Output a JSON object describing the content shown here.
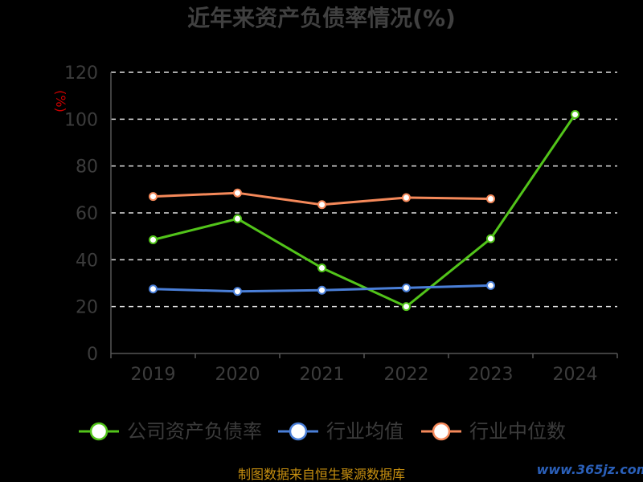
{
  "chart_data": {
    "type": "line",
    "title": "近年来资产负债率情况(%)",
    "ylabel": "(%)",
    "categories": [
      "2019",
      "2020",
      "2021",
      "2022",
      "2023",
      "2024"
    ],
    "ylim": [
      0,
      120
    ],
    "yticks": [
      0,
      20,
      40,
      60,
      80,
      100,
      120
    ],
    "grid": true,
    "legend": "bottom",
    "series": [
      {
        "name": "公司资产负债率",
        "color": "#52c41a",
        "values": [
          48.5,
          57.5,
          36.5,
          20.0,
          49.0,
          102.0
        ]
      },
      {
        "name": "行业均值",
        "color": "#4a7fd8",
        "values": [
          27.5,
          26.5,
          27.0,
          28.0,
          29.0,
          null
        ]
      },
      {
        "name": "行业中位数",
        "color": "#f5895a",
        "values": [
          67.0,
          68.5,
          63.5,
          66.5,
          66.0,
          null
        ]
      }
    ]
  },
  "source_note": "制图数据来自恒生聚源数据库",
  "watermark": "www.365jz.com"
}
